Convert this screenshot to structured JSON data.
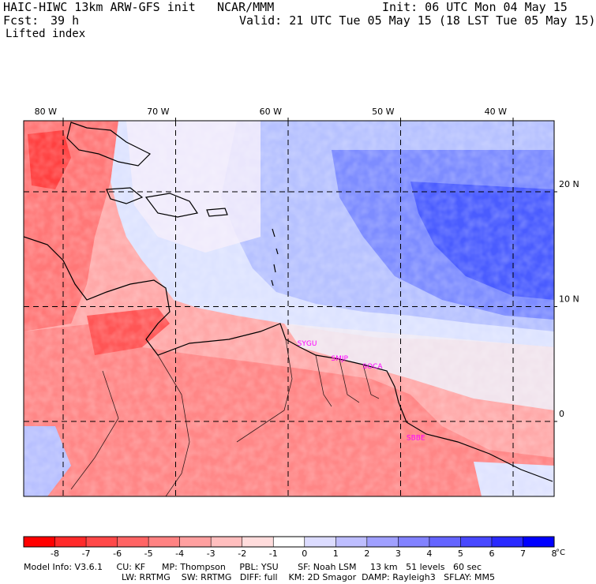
{
  "header": {
    "model": "HAIC-HIWC 13km ARW-GFS init",
    "center": "NCAR/MMM",
    "init": "Init: 06 UTC Mon 04 May 15",
    "fcst_label": "Fcst:",
    "fcst_value": "39 h",
    "valid": "Valid: 21 UTC Tue 05 May 15 (18 LST Tue 05 May 15)",
    "field": "Lifted index"
  },
  "map": {
    "lon_labels": [
      {
        "label": "80 W",
        "lon": -80
      },
      {
        "label": "70 W",
        "lon": -70
      },
      {
        "label": "60 W",
        "lon": -60
      },
      {
        "label": "50 W",
        "lon": -50
      },
      {
        "label": "40 W",
        "lon": -40
      }
    ],
    "lat_labels": [
      {
        "label": "20 N",
        "lat": 20
      },
      {
        "label": "10 N",
        "lat": 10
      },
      {
        "label": "0",
        "lat": 0
      }
    ],
    "stations": [
      {
        "code": "SYGU",
        "lon": -58.2,
        "lat": 6.8
      },
      {
        "code": "SMJP",
        "lon": -55.2,
        "lat": 5.5
      },
      {
        "code": "SOCA",
        "lon": -52.4,
        "lat": 4.8
      },
      {
        "code": "SBBE",
        "lon": -48.5,
        "lat": -1.4
      }
    ],
    "station_color": "#ff00ff"
  },
  "colorbar": {
    "unit": "°C",
    "labels": [
      "-8",
      "-7",
      "-6",
      "-5",
      "-4",
      "-3",
      "-2",
      "-1",
      "0",
      "1",
      "2",
      "3",
      "4",
      "5",
      "6",
      "7",
      "8"
    ],
    "colors": [
      "#ff0000",
      "#ff2a2a",
      "#ff4848",
      "#ff6464",
      "#ff8282",
      "#ffa0a0",
      "#ffbebe",
      "#ffdcdc",
      "#ffffff",
      "#dcdcff",
      "#bebeff",
      "#a0a0ff",
      "#8282ff",
      "#6464ff",
      "#4848ff",
      "#2a2aff",
      "#0000ff"
    ]
  },
  "footer": {
    "line1": "Model Info: V3.6.1     CU: KF      MP: Thompson     PBL: YSU       SF: Noah LSM     13 km   51 levels   60 sec",
    "line2": "LW: RRTMG    SW: RRTMG   DIFF: full    KM: 2D Smagor  DAMP: Rayleigh3   SFLAY: MM5"
  }
}
